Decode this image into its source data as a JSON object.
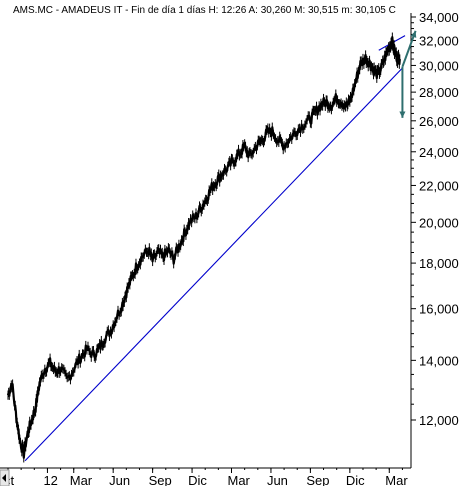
{
  "header": {
    "symbol": "AMS.MC",
    "name": "AMADEUS IT",
    "period": "Fin de día 1 días",
    "hours_label": "H:",
    "hours_value": "12:26",
    "open_label": "A:",
    "open_value": "30,260",
    "mid_label": "M:",
    "mid_value": "30,515",
    "min_label": "m:",
    "min_value": "30,105",
    "cut_text": "C"
  },
  "colors": {
    "price": "#000000",
    "trendline": "#0000cc",
    "arrows": "#2f6f6f",
    "axis": "#000000",
    "background": "#ffffff"
  },
  "chart_data": {
    "type": "line",
    "title": "AMS.MC - AMADEUS IT - Fin de día 1 días",
    "yscale": "log",
    "ylim": [
      10600,
      34000
    ],
    "grid": false,
    "ytick_labels": [
      "12,000",
      "14,000",
      "16,000",
      "18,000",
      "20,000",
      "22,000",
      "24,000",
      "26,000",
      "28,000",
      "30,000",
      "32,000",
      "34,000"
    ],
    "ytick_values": [
      12000,
      14000,
      16000,
      18000,
      20000,
      22000,
      24000,
      26000,
      28000,
      30000,
      32000,
      34000
    ],
    "xtick_labels": [
      "ct",
      "12",
      "Mar",
      "Jun",
      "Sep",
      "Dic",
      "Mar",
      "Jun",
      "Sep",
      "Dic",
      "Mar"
    ],
    "xtick_months": [
      0,
      3,
      5,
      8,
      11,
      14,
      17,
      20,
      23,
      26,
      29
    ],
    "x_span_months": 30.5,
    "series": [
      {
        "points": [
          [
            0.0,
            12800
          ],
          [
            0.3,
            13200
          ],
          [
            0.6,
            12200
          ],
          [
            0.9,
            11400
          ],
          [
            1.2,
            11000
          ],
          [
            1.5,
            11600
          ],
          [
            1.8,
            12000
          ],
          [
            2.1,
            12400
          ],
          [
            2.4,
            13200
          ],
          [
            2.8,
            13700
          ],
          [
            3.2,
            13900
          ],
          [
            3.6,
            13600
          ],
          [
            4.0,
            13700
          ],
          [
            4.5,
            13300
          ],
          [
            5.0,
            13700
          ],
          [
            5.5,
            14100
          ],
          [
            6.0,
            14400
          ],
          [
            6.5,
            14200
          ],
          [
            6.9,
            14400
          ],
          [
            7.3,
            14800
          ],
          [
            7.8,
            15100
          ],
          [
            8.2,
            15600
          ],
          [
            8.7,
            16200
          ],
          [
            9.0,
            16700
          ],
          [
            9.4,
            17300
          ],
          [
            9.8,
            17900
          ],
          [
            10.2,
            18300
          ],
          [
            10.7,
            18600
          ],
          [
            11.0,
            18100
          ],
          [
            11.4,
            18500
          ],
          [
            11.8,
            18300
          ],
          [
            12.2,
            18600
          ],
          [
            12.6,
            18200
          ],
          [
            13.0,
            18800
          ],
          [
            13.4,
            19400
          ],
          [
            13.8,
            20000
          ],
          [
            14.3,
            20300
          ],
          [
            14.7,
            20800
          ],
          [
            15.1,
            21300
          ],
          [
            15.5,
            21900
          ],
          [
            15.9,
            22300
          ],
          [
            16.3,
            22700
          ],
          [
            16.8,
            23100
          ],
          [
            17.2,
            23500
          ],
          [
            17.6,
            23900
          ],
          [
            18.0,
            24300
          ],
          [
            18.4,
            23700
          ],
          [
            18.9,
            24400
          ],
          [
            19.3,
            24700
          ],
          [
            19.7,
            25200
          ],
          [
            20.1,
            25300
          ],
          [
            20.6,
            24700
          ],
          [
            21.0,
            24400
          ],
          [
            21.5,
            24900
          ],
          [
            22.0,
            25400
          ],
          [
            22.5,
            25800
          ],
          [
            23.0,
            26100
          ],
          [
            23.4,
            26600
          ],
          [
            23.8,
            27100
          ],
          [
            24.2,
            27300
          ],
          [
            24.6,
            27100
          ],
          [
            25.0,
            27600
          ],
          [
            25.4,
            27300
          ],
          [
            25.8,
            27000
          ],
          [
            26.1,
            27600
          ],
          [
            26.5,
            29000
          ],
          [
            26.8,
            30100
          ],
          [
            27.2,
            30600
          ],
          [
            27.5,
            30200
          ],
          [
            27.8,
            29700
          ],
          [
            28.1,
            29300
          ],
          [
            28.4,
            29800
          ],
          [
            28.7,
            30700
          ],
          [
            29.0,
            31500
          ],
          [
            29.2,
            32000
          ],
          [
            29.4,
            31100
          ],
          [
            29.6,
            30600
          ],
          [
            29.8,
            30500
          ]
        ]
      }
    ],
    "trendlines": [
      {
        "from": [
          1.3,
          10800
        ],
        "to": [
          30.0,
          29800
        ]
      },
      {
        "from": [
          28.2,
          31200
        ],
        "to": [
          30.2,
          32400
        ]
      }
    ],
    "arrows": [
      {
        "from": [
          30.0,
          29900
        ],
        "to": [
          31.0,
          32800
        ]
      },
      {
        "from": [
          30.0,
          29900
        ],
        "to": [
          30.0,
          26200
        ]
      }
    ]
  }
}
